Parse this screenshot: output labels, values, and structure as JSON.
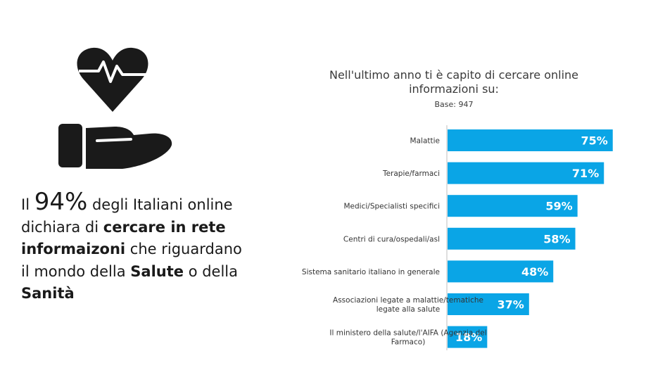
{
  "headline": {
    "prefix": "Il",
    "percent": "94%",
    "part1": " degli Italiani online dichiara di ",
    "bold1": "cercare in rete informaizoni",
    "part2": " che riguardano il mondo della ",
    "bold2": "Salute",
    "part3": " o della ",
    "bold3": "Sanità"
  },
  "icons": {
    "main": "heart-in-hand-icon"
  },
  "colors": {
    "bar": "#0aa5e6",
    "bar_label": "#ffffff",
    "axis": "#bfbfbf",
    "icon": "#1a1a1a"
  },
  "chart_data": {
    "type": "bar",
    "orientation": "horizontal",
    "title": "Nell'ultimo anno ti è capito di cercare online informazioni su:",
    "subtitle": "Base: 947",
    "categories": [
      [
        "Malattie"
      ],
      [
        "Terapie/farmaci"
      ],
      [
        "Medici/Specialisti specifici"
      ],
      [
        "Centri di cura/ospedali/asl"
      ],
      [
        "Sistema sanitario italiano in generale"
      ],
      [
        "Associazioni legate a malattie/tematiche",
        "legate alla salute"
      ],
      [
        "Il ministero della salute/l'AIFA (Agenzia del",
        "Farmaco)"
      ]
    ],
    "values": [
      75,
      71,
      59,
      58,
      48,
      37,
      18
    ],
    "value_labels": [
      "75%",
      "71%",
      "59%",
      "58%",
      "48%",
      "37%",
      "18%"
    ],
    "xlim": [
      0,
      80
    ],
    "grid": false,
    "legend": "none"
  }
}
